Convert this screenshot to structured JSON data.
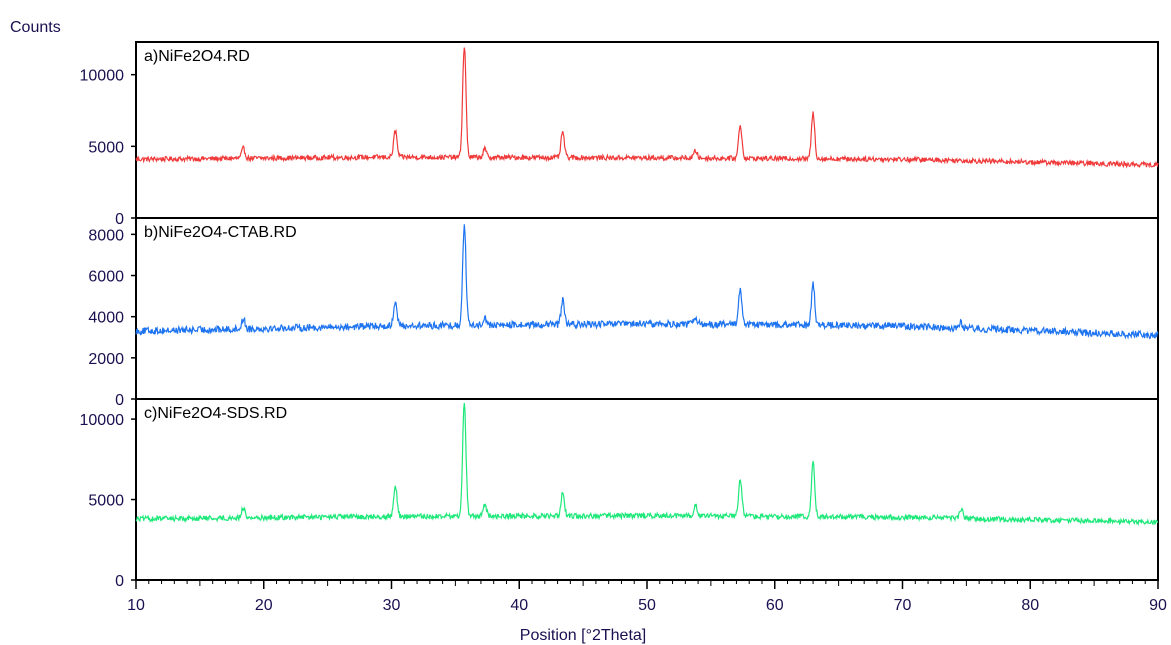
{
  "y_axis_label": "Counts",
  "colors": {
    "a": "#f03a3a",
    "b": "#1e74f0",
    "c": "#1ee87a",
    "axis": "#000000",
    "tick_text": "#1a1050"
  },
  "chart_data": {
    "type": "line",
    "xlabel": "Position [°2Theta]",
    "ylabel": "Counts",
    "xlim": [
      10,
      90
    ],
    "x_ticks": [
      10,
      20,
      30,
      40,
      50,
      60,
      70,
      80,
      90
    ],
    "grid": false,
    "panels": [
      {
        "id": "a",
        "name": "a)NiFe2O4.RD",
        "color": "#f03a3a",
        "ylim": [
          0,
          12000
        ],
        "y_ticks": [
          0,
          5000,
          10000
        ],
        "baseline": [
          [
            10,
            4100
          ],
          [
            30,
            4250
          ],
          [
            50,
            4200
          ],
          [
            70,
            4100
          ],
          [
            90,
            3700
          ]
        ],
        "noise": 170,
        "peaks": [
          {
            "x": 18.4,
            "y": 4850
          },
          {
            "x": 30.3,
            "y": 6100
          },
          {
            "x": 35.7,
            "y": 12000
          },
          {
            "x": 37.3,
            "y": 4800
          },
          {
            "x": 43.4,
            "y": 6000
          },
          {
            "x": 53.8,
            "y": 4700
          },
          {
            "x": 57.3,
            "y": 6500
          },
          {
            "x": 63.0,
            "y": 7300
          }
        ]
      },
      {
        "id": "b",
        "name": "b)NiFe2O4-CTAB.RD",
        "color": "#1e74f0",
        "ylim": [
          0,
          8600
        ],
        "y_ticks": [
          0,
          2000,
          4000,
          6000,
          8000
        ],
        "baseline": [
          [
            10,
            3300
          ],
          [
            30,
            3550
          ],
          [
            50,
            3650
          ],
          [
            70,
            3550
          ],
          [
            90,
            3100
          ]
        ],
        "noise": 170,
        "peaks": [
          {
            "x": 18.4,
            "y": 3900
          },
          {
            "x": 30.3,
            "y": 4800
          },
          {
            "x": 35.7,
            "y": 8500
          },
          {
            "x": 37.3,
            "y": 4000
          },
          {
            "x": 43.4,
            "y": 4800
          },
          {
            "x": 53.8,
            "y": 4000
          },
          {
            "x": 57.3,
            "y": 5400
          },
          {
            "x": 63.0,
            "y": 5600
          },
          {
            "x": 74.6,
            "y": 3700
          }
        ]
      },
      {
        "id": "c",
        "name": "c)NiFe2O4-SDS.RD",
        "color": "#1ee87a",
        "ylim": [
          0,
          11000
        ],
        "y_ticks": [
          0,
          5000,
          10000
        ],
        "baseline": [
          [
            10,
            3800
          ],
          [
            30,
            3950
          ],
          [
            50,
            4000
          ],
          [
            70,
            3900
          ],
          [
            90,
            3600
          ]
        ],
        "noise": 160,
        "peaks": [
          {
            "x": 18.4,
            "y": 4500
          },
          {
            "x": 30.3,
            "y": 5900
          },
          {
            "x": 35.7,
            "y": 11000
          },
          {
            "x": 37.3,
            "y": 4700
          },
          {
            "x": 43.4,
            "y": 5500
          },
          {
            "x": 53.8,
            "y": 4700
          },
          {
            "x": 57.3,
            "y": 6200
          },
          {
            "x": 63.0,
            "y": 7300
          },
          {
            "x": 74.6,
            "y": 4400
          }
        ]
      }
    ]
  }
}
